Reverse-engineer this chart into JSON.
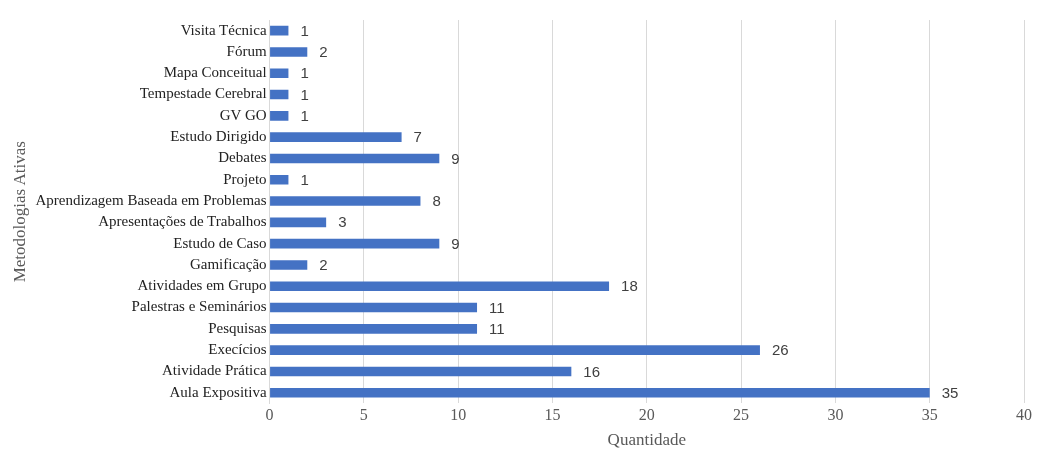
{
  "chart_data": {
    "type": "bar",
    "orientation": "horizontal",
    "xlabel": "Quantidade",
    "ylabel": "Metodologias Ativas",
    "categories": [
      "Visita Técnica",
      "Fórum",
      "Mapa Conceitual",
      "Tempestade Cerebral",
      "GV GO",
      "Estudo Dirigido",
      "Debates",
      "Projeto",
      "Aprendizagem Baseada em Problemas",
      "Apresentações de Trabalhos",
      "Estudo de Caso",
      "Gamificação",
      "Atividades em Grupo",
      "Palestras e Seminários",
      "Pesquisas",
      "Execícios",
      "Atividade Prática",
      "Aula Expositiva"
    ],
    "values": [
      1,
      2,
      1,
      1,
      1,
      7,
      9,
      1,
      8,
      3,
      9,
      2,
      18,
      11,
      11,
      26,
      16,
      35
    ],
    "color": "#4472c4",
    "xlim": [
      0,
      40
    ],
    "xticks": [
      0,
      5,
      10,
      15,
      20,
      25,
      30,
      35,
      40
    ],
    "grid": "x",
    "data_labels": true,
    "legend": false
  }
}
